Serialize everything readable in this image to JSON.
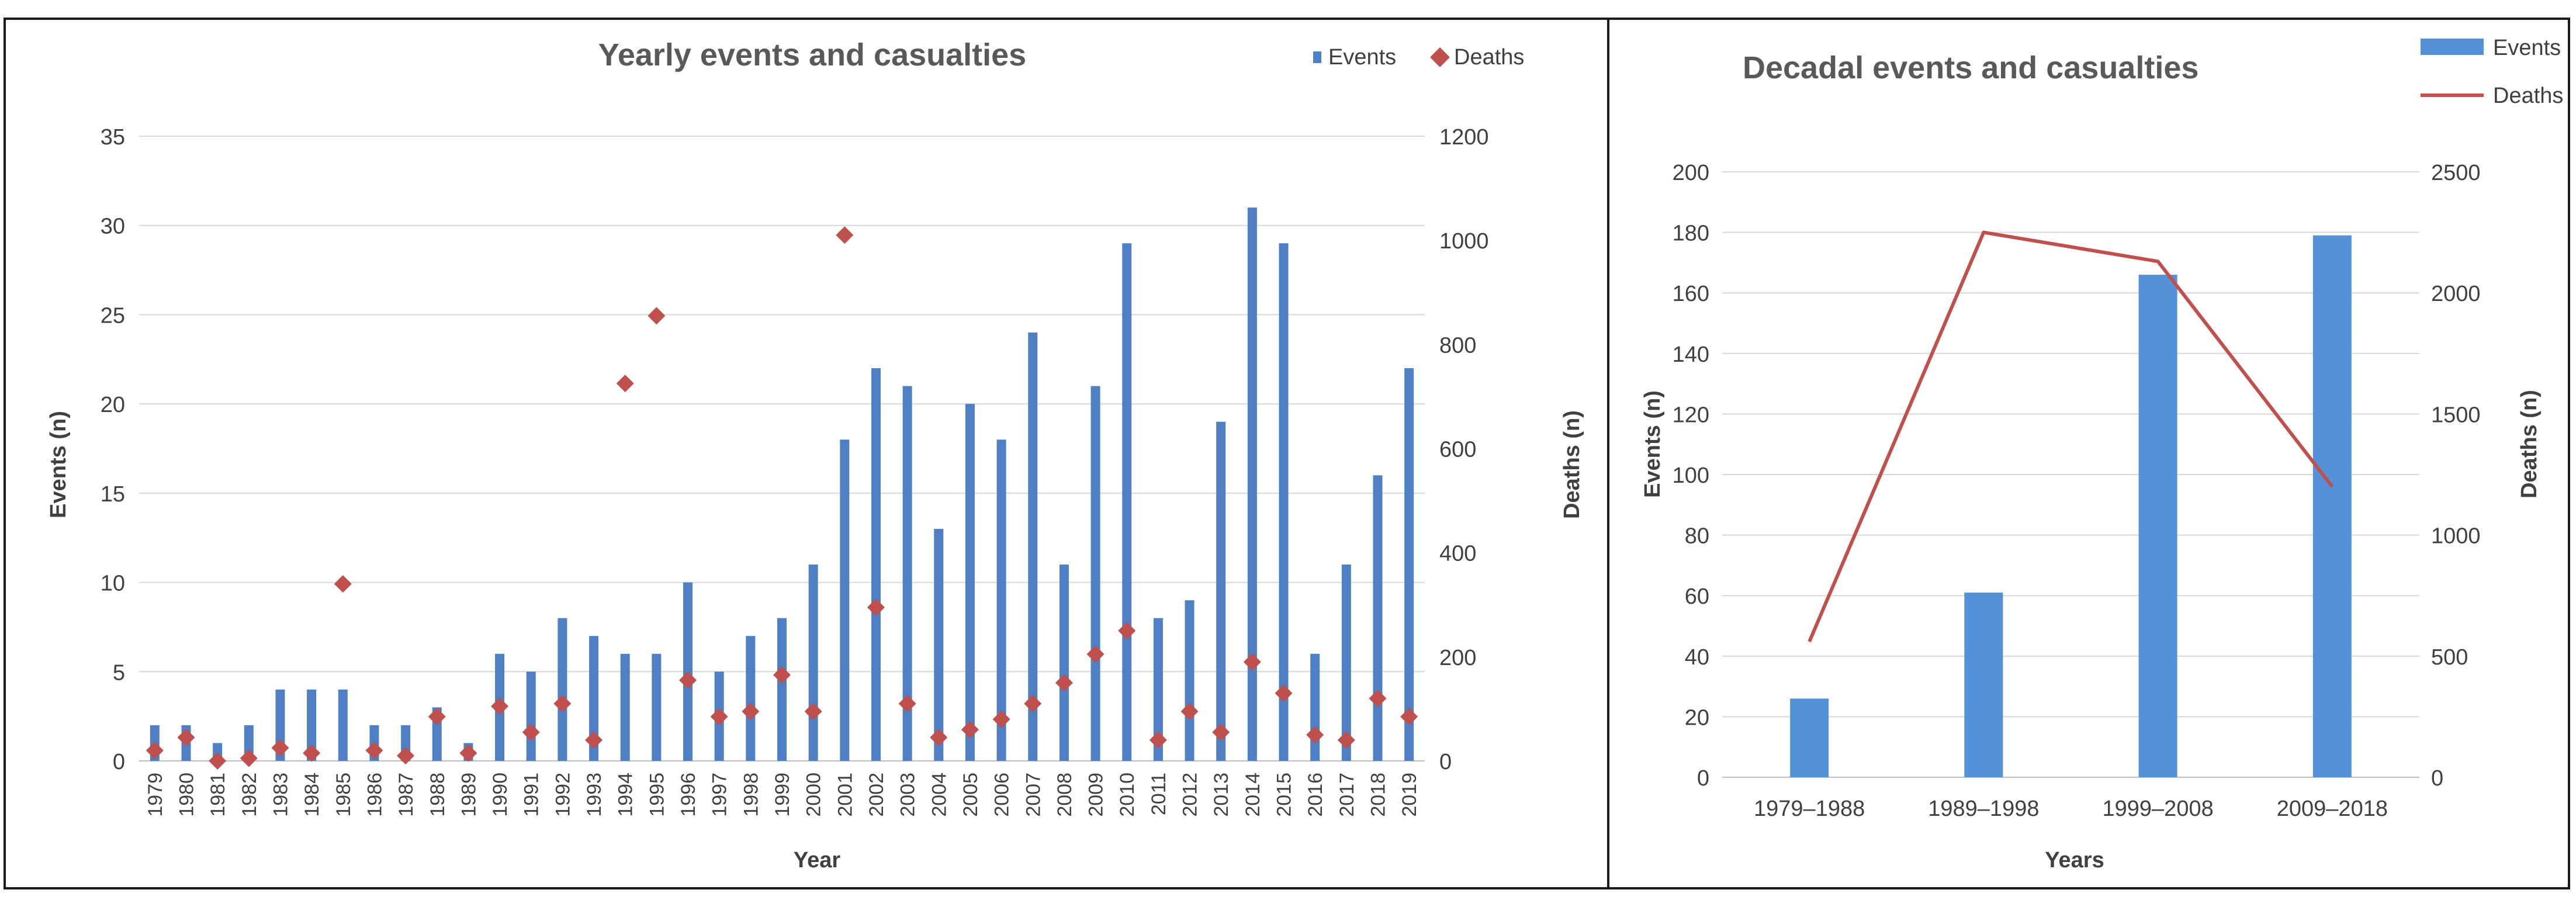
{
  "colors": {
    "events": "#4F7FC4",
    "deaths": "#C0504D",
    "decadal_events": "#5591D9",
    "grid": "#d9d9d9",
    "border": "#1a1a1a",
    "text": "#404040"
  },
  "chart_data": [
    {
      "type": "bar",
      "title": "Yearly events and casualties",
      "xlabel": "Year",
      "ylabel": "Events (n)",
      "y2label": "Deaths (n)",
      "ylim": [
        0,
        35
      ],
      "y2lim": [
        0,
        1200
      ],
      "yticks": [
        "0",
        "5",
        "10",
        "15",
        "20",
        "25",
        "30",
        "35"
      ],
      "y2ticks": [
        "0",
        "200",
        "400",
        "600",
        "800",
        "1000",
        "1200"
      ],
      "legend": [
        "Events",
        "Deaths"
      ],
      "legend_position": "top-right",
      "categories": [
        "1979",
        "1980",
        "1981",
        "1982",
        "1983",
        "1984",
        "1985",
        "1986",
        "1987",
        "1988",
        "1989",
        "1990",
        "1991",
        "1992",
        "1993",
        "1994",
        "1995",
        "1996",
        "1997",
        "1998",
        "1999",
        "2000",
        "2001",
        "2002",
        "2003",
        "2004",
        "2005",
        "2006",
        "2007",
        "2008",
        "2009",
        "2010",
        "2011",
        "2012",
        "2013",
        "2014",
        "2015",
        "2016",
        "2017",
        "2018",
        "2019"
      ],
      "series": [
        {
          "name": "Events",
          "kind": "bar",
          "axis": "left",
          "values": [
            2,
            2,
            1,
            2,
            4,
            4,
            4,
            2,
            2,
            3,
            1,
            6,
            5,
            8,
            7,
            6,
            6,
            10,
            5,
            7,
            8,
            11,
            18,
            22,
            21,
            13,
            20,
            18,
            24,
            11,
            21,
            29,
            8,
            9,
            19,
            31,
            29,
            6,
            11,
            16,
            22
          ]
        },
        {
          "name": "Deaths",
          "kind": "marker",
          "axis": "right",
          "values": [
            20,
            45,
            0,
            5,
            25,
            15,
            340,
            20,
            10,
            85,
            15,
            105,
            55,
            110,
            40,
            725,
            855,
            155,
            85,
            95,
            165,
            95,
            1010,
            295,
            110,
            45,
            60,
            80,
            110,
            150,
            205,
            250,
            40,
            95,
            55,
            190,
            130,
            50,
            40,
            120,
            85
          ]
        }
      ]
    },
    {
      "type": "bar",
      "title": "Decadal events and casualties",
      "xlabel": "Years",
      "ylabel": "Events (n)",
      "y2label": "Deaths (n)",
      "ylim": [
        0,
        200
      ],
      "y2lim": [
        0,
        2500
      ],
      "yticks": [
        "0",
        "20",
        "40",
        "60",
        "80",
        "100",
        "120",
        "140",
        "160",
        "180",
        "200"
      ],
      "y2ticks": [
        "0",
        "500",
        "1000",
        "1500",
        "2000",
        "2500"
      ],
      "legend": [
        "Events",
        "Deaths"
      ],
      "legend_position": "top-right",
      "categories": [
        "1979–1988",
        "1989–1998",
        "1999–2008",
        "2009–2018"
      ],
      "series": [
        {
          "name": "Events",
          "kind": "bar",
          "axis": "left",
          "values": [
            26,
            61,
            166,
            179
          ]
        },
        {
          "name": "Deaths",
          "kind": "line",
          "axis": "right",
          "values": [
            560,
            2250,
            2130,
            1200
          ]
        }
      ]
    }
  ]
}
